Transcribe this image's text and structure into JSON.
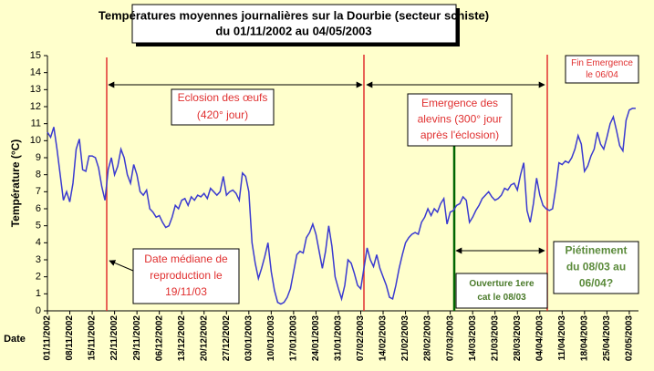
{
  "chart_data": {
    "type": "line",
    "title": [
      "Températures moyennes journalières sur la Dourbie (secteur schiste)",
      "du 01/11/2002 au 04/05/2003"
    ],
    "y_label": "Température (°C)",
    "x_label": "Date",
    "categories": [
      "01/11/2002",
      null,
      null,
      null,
      null,
      null,
      null,
      "08/11/2002",
      null,
      null,
      null,
      null,
      null,
      null,
      "15/11/2002",
      null,
      null,
      null,
      null,
      null,
      null,
      "22/11/2002",
      null,
      null,
      null,
      null,
      null,
      null,
      "29/11/2002",
      null,
      null,
      null,
      null,
      null,
      null,
      "06/12/2002",
      null,
      null,
      null,
      null,
      null,
      null,
      "13/12/2002",
      null,
      null,
      null,
      null,
      null,
      null,
      "20/12/2002",
      null,
      null,
      null,
      null,
      null,
      null,
      "27/12/2002",
      null,
      null,
      null,
      null,
      null,
      null,
      "03/01/2003",
      null,
      null,
      null,
      null,
      null,
      null,
      "10/01/2003",
      null,
      null,
      null,
      null,
      null,
      null,
      "17/01/2003",
      null,
      null,
      null,
      null,
      null,
      null,
      "24/01/2003",
      null,
      null,
      null,
      null,
      null,
      null,
      "31/01/2003",
      null,
      null,
      null,
      null,
      null,
      null,
      "07/02/2003",
      null,
      null,
      null,
      null,
      null,
      null,
      "14/02/2003",
      null,
      null,
      null,
      null,
      null,
      null,
      "21/02/2003",
      null,
      null,
      null,
      null,
      null,
      null,
      "28/02/2003",
      null,
      null,
      null,
      null,
      null,
      null,
      "07/03/2003",
      null,
      null,
      null,
      null,
      null,
      null,
      "14/03/2003",
      null,
      null,
      null,
      null,
      null,
      null,
      "21/03/2003",
      null,
      null,
      null,
      null,
      null,
      null,
      "28/03/2003",
      null,
      null,
      null,
      null,
      null,
      null,
      "04/04/2003",
      null,
      null,
      null,
      null,
      null,
      null,
      "11/04/2003",
      null,
      null,
      null,
      null,
      null,
      null,
      "18/04/2003",
      null,
      null,
      null,
      null,
      null,
      null,
      "25/04/2003",
      null,
      null,
      null,
      null,
      null,
      null,
      "02/05/2003",
      null,
      null
    ],
    "values": [
      10.5,
      10.2,
      10.8,
      9.5,
      8,
      6.5,
      7,
      6.4,
      7.5,
      9.5,
      10.1,
      8.3,
      8.2,
      9.1,
      9.1,
      9,
      8.4,
      7.3,
      6.5,
      8.3,
      9,
      8,
      8.5,
      9.5,
      9,
      8,
      7.5,
      8.6,
      8,
      7,
      6.8,
      7.1,
      6,
      5.8,
      5.5,
      5.6,
      5.2,
      4.9,
      5,
      5.5,
      6.2,
      6,
      6.5,
      6.6,
      6.2,
      6.7,
      6.5,
      6.8,
      6.7,
      6.9,
      6.6,
      7.2,
      7,
      6.8,
      7,
      7.9,
      6.8,
      7,
      7.1,
      6.9,
      6.5,
      8.1,
      7.9,
      7,
      4,
      2.8,
      1.9,
      2.5,
      3.2,
      4,
      2.3,
      1.2,
      0.5,
      0.4,
      0.5,
      0.8,
      1.3,
      2.3,
      3.3,
      3.5,
      3.4,
      4.3,
      4.6,
      5.1,
      4.5,
      3.5,
      2.5,
      3.5,
      5,
      3.8,
      2,
      1.3,
      0.7,
      1.5,
      3,
      2.8,
      2.2,
      1.5,
      1.3,
      2.5,
      3.7,
      3,
      2.6,
      3.3,
      2.5,
      2,
      1.5,
      0.8,
      0.7,
      1.5,
      2.5,
      3.3,
      4,
      4.3,
      4.5,
      4.6,
      4.5,
      5.2,
      5.5,
      6,
      5.6,
      6,
      5.8,
      6.3,
      6.6,
      5.1,
      5.8,
      5.9,
      6.2,
      6.3,
      6.7,
      6.5,
      5.2,
      5.5,
      5.9,
      6.2,
      6.6,
      6.8,
      7,
      6.7,
      6.5,
      6.6,
      6.8,
      7.2,
      7.1,
      7.4,
      7.5,
      7.1,
      8,
      8.7,
      5.9,
      5.2,
      6.3,
      7.8,
      6.8,
      6.2,
      6,
      5.9,
      6,
      7.2,
      8.7,
      8.6,
      8.8,
      8.7,
      9,
      9.5,
      10.3,
      9.8,
      8.2,
      8.5,
      9.1,
      9.5,
      10.5,
      9.8,
      9.5,
      10.2,
      11,
      11.4,
      10.6,
      9.7,
      9.4,
      11.2,
      11.8,
      11.9,
      11.9
    ],
    "color": "#3a3ad0",
    "ylim": [
      0,
      15
    ],
    "yticks": [
      0,
      1,
      2,
      3,
      4,
      5,
      6,
      7,
      8,
      9,
      10,
      11,
      12,
      13,
      14,
      15
    ],
    "annotations": [
      {
        "lines": [
          "Eclosion des œufs",
          "(420° jour)"
        ]
      },
      {
        "lines": [
          "Emergence des",
          "alevins (300° jour",
          "après l'éclosion)"
        ]
      },
      {
        "lines": [
          "Fin Emergence",
          "le 06/04"
        ]
      },
      {
        "lines": [
          "Date médiane de",
          "reproduction le",
          "19/11/03"
        ]
      },
      {
        "lines": [
          "Ouverture 1ere",
          "cat le 08/03"
        ]
      },
      {
        "lines": [
          "Piétinement",
          "du 08/03 au",
          "06/04?"
        ]
      }
    ]
  }
}
